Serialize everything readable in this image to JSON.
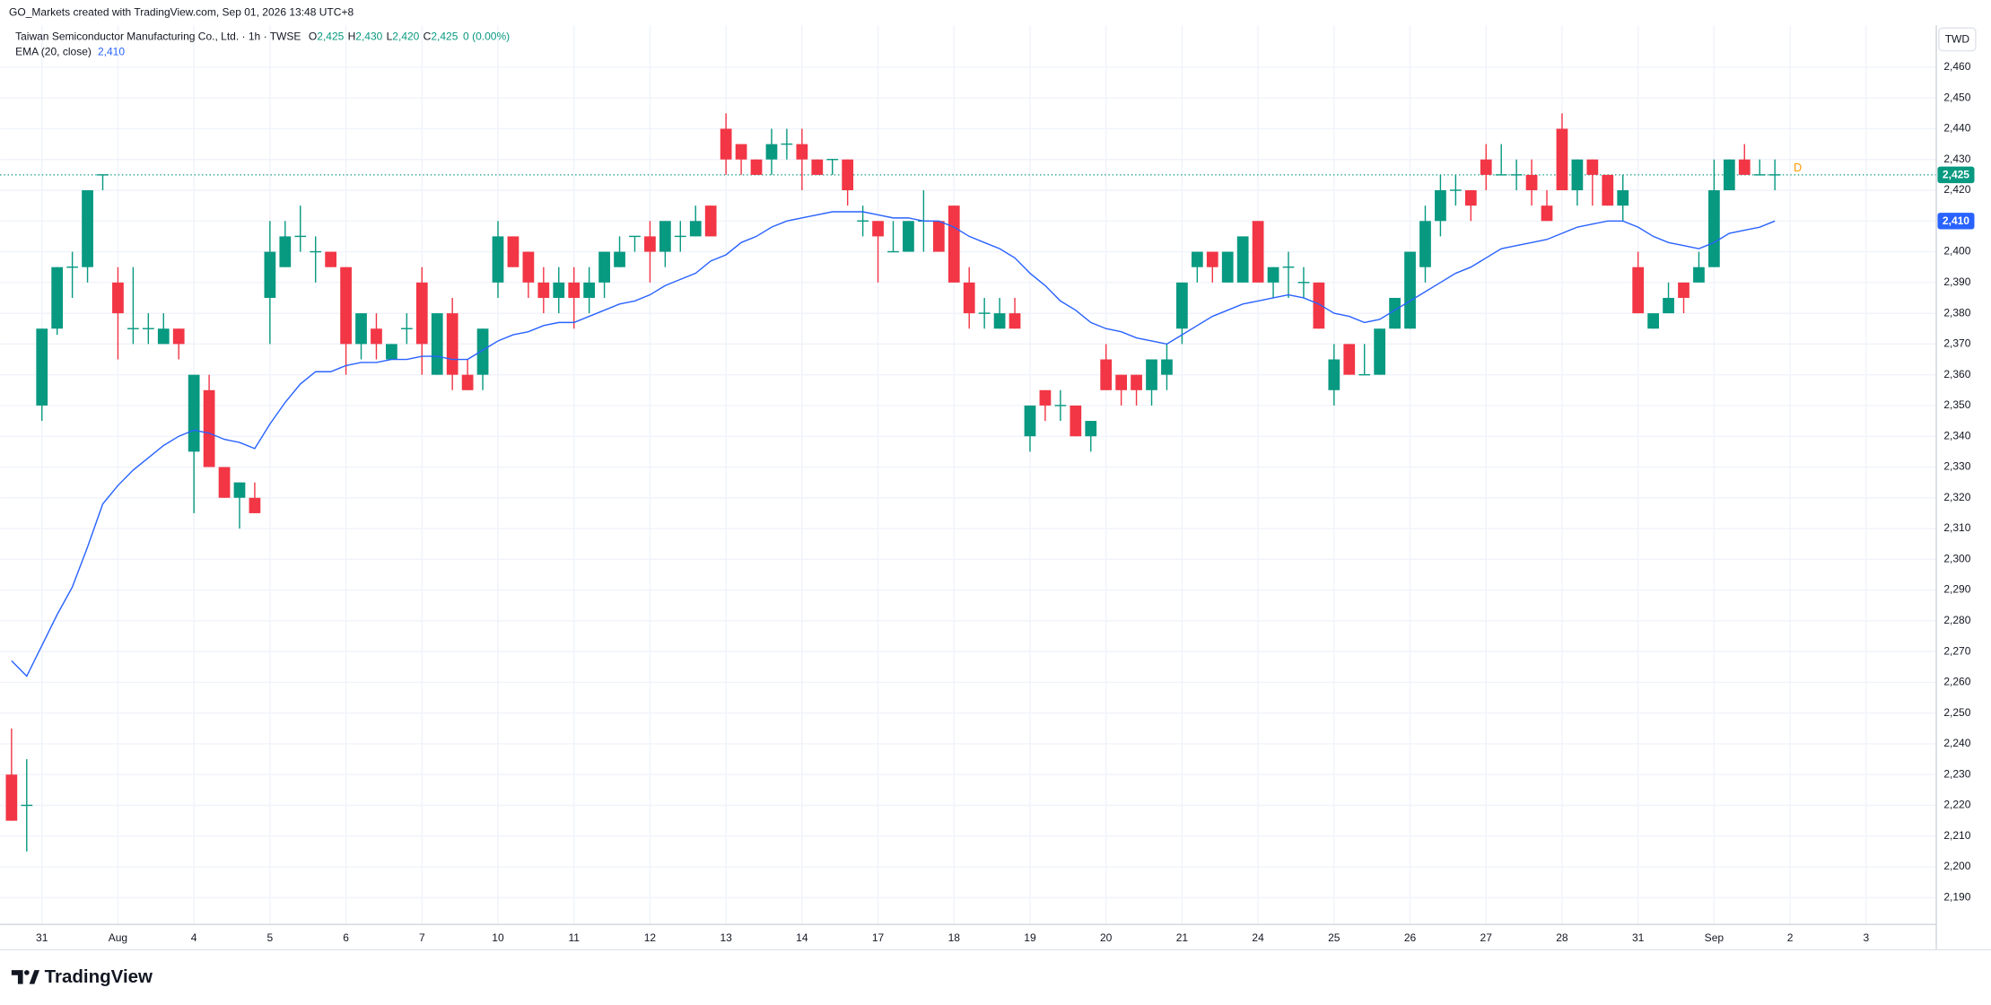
{
  "chart_data": {
    "type": "candlestick",
    "title": "GO_Markets created with TradingView.com, Sep 01, 2026 13:48 UTC+8",
    "symbol": "Taiwan Semiconductor Manufacturing Co., Ltd. · 1h · TWSE",
    "ohlc_legend": [
      {
        "key": "O",
        "value": "2,425"
      },
      {
        "key": "H",
        "value": "2,430"
      },
      {
        "key": "L",
        "value": "2,420"
      },
      {
        "key": "C",
        "value": "2,425"
      }
    ],
    "change": "0 (0.00%)",
    "currency": "TWD",
    "marker": "D",
    "brand": "TradingView",
    "up_color": "#089981",
    "down_color": "#f23645",
    "grid": true,
    "categories": [
      null,
      null,
      "31",
      null,
      null,
      null,
      null,
      "Aug",
      null,
      null,
      null,
      null,
      "4",
      null,
      null,
      null,
      null,
      "5",
      null,
      null,
      null,
      null,
      "6",
      null,
      null,
      null,
      null,
      "7",
      null,
      null,
      null,
      null,
      "10",
      null,
      null,
      null,
      null,
      "11",
      null,
      null,
      null,
      null,
      "12",
      null,
      null,
      null,
      null,
      "13",
      null,
      null,
      null,
      null,
      "14",
      null,
      null,
      null,
      null,
      "17",
      null,
      null,
      null,
      null,
      "18",
      null,
      null,
      null,
      null,
      "19",
      null,
      null,
      null,
      null,
      "20",
      null,
      null,
      null,
      null,
      "21",
      null,
      null,
      null,
      null,
      "24",
      null,
      null,
      null,
      null,
      "25",
      null,
      null,
      null,
      null,
      "26",
      null,
      null,
      null,
      null,
      "27",
      null,
      null,
      null,
      null,
      "28",
      null,
      null,
      null,
      null,
      "31",
      null,
      null,
      null,
      null,
      "Sep",
      null,
      null,
      null,
      null,
      "2",
      null,
      null,
      null,
      null,
      "3",
      null,
      null,
      null,
      null
    ],
    "open": [
      2230,
      2220,
      2350,
      2375,
      2395,
      2395,
      2425,
      2390,
      2375,
      2375,
      2370,
      2375,
      2335,
      2355,
      2330,
      2320,
      2320,
      2385,
      2395,
      2405,
      2400,
      2400,
      2395,
      2370,
      2375,
      2365,
      2375,
      2390,
      2360,
      2380,
      2360,
      2360,
      2390,
      2405,
      2400,
      2390,
      2385,
      2390,
      2385,
      2390,
      2395,
      2405,
      2405,
      2400,
      2405,
      2405,
      2415,
      2440,
      2435,
      2430,
      2430,
      2435,
      2435,
      2430,
      2430,
      2430,
      2410,
      2410,
      2400,
      2400,
      2410,
      2410,
      2415,
      2390,
      2380,
      2375,
      2380,
      2340,
      2355,
      2350,
      2350,
      2340,
      2365,
      2360,
      2360,
      2355,
      2360,
      2375,
      2395,
      2400,
      2390,
      2390,
      2410,
      2390,
      2395,
      2390,
      2390,
      2355,
      2370,
      2360,
      2360,
      2375,
      2375,
      2395,
      2410,
      2420,
      2420,
      2430,
      2425,
      2425,
      2425,
      2415,
      2440,
      2420,
      2430,
      2425,
      2415,
      2395,
      2375,
      2380,
      2390,
      2390,
      2395,
      2420,
      2430,
      2425,
      2425,
      null,
      null,
      null,
      null,
      null,
      null,
      null,
      null,
      null,
      null
    ],
    "high": [
      2245,
      2235,
      2375,
      2395,
      2400,
      2420,
      2425,
      2395,
      2395,
      2380,
      2380,
      2375,
      2360,
      2360,
      2330,
      2325,
      2325,
      2410,
      2410,
      2415,
      2405,
      2400,
      2395,
      2380,
      2380,
      2370,
      2380,
      2395,
      2380,
      2385,
      2365,
      2375,
      2410,
      2405,
      2400,
      2395,
      2395,
      2395,
      2395,
      2400,
      2405,
      2405,
      2410,
      2410,
      2410,
      2415,
      2415,
      2445,
      2435,
      2430,
      2440,
      2440,
      2440,
      2430,
      2430,
      2430,
      2415,
      2410,
      2410,
      2410,
      2420,
      2410,
      2415,
      2395,
      2385,
      2385,
      2385,
      2350,
      2355,
      2355,
      2350,
      2345,
      2370,
      2360,
      2360,
      2365,
      2370,
      2390,
      2400,
      2400,
      2400,
      2405,
      2410,
      2395,
      2400,
      2395,
      2390,
      2370,
      2370,
      2370,
      2375,
      2385,
      2400,
      2415,
      2425,
      2425,
      2420,
      2435,
      2435,
      2430,
      2430,
      2420,
      2445,
      2430,
      2430,
      2425,
      2425,
      2400,
      2380,
      2390,
      2390,
      2400,
      2430,
      2430,
      2435,
      2430,
      2430,
      null,
      null,
      null,
      null,
      null,
      null,
      null,
      null,
      null,
      null
    ],
    "low": [
      2215,
      2205,
      2345,
      2373,
      2385,
      2390,
      2420,
      2365,
      2370,
      2370,
      2370,
      2365,
      2315,
      2330,
      2320,
      2310,
      2315,
      2370,
      2395,
      2400,
      2390,
      2395,
      2360,
      2365,
      2365,
      2365,
      2370,
      2360,
      2360,
      2355,
      2355,
      2355,
      2385,
      2395,
      2385,
      2380,
      2380,
      2375,
      2380,
      2385,
      2395,
      2400,
      2390,
      2395,
      2400,
      2405,
      2405,
      2425,
      2425,
      2425,
      2425,
      2430,
      2420,
      2425,
      2425,
      2415,
      2405,
      2390,
      2400,
      2400,
      2400,
      2400,
      2390,
      2375,
      2375,
      2375,
      2375,
      2335,
      2345,
      2345,
      2340,
      2335,
      2355,
      2350,
      2350,
      2350,
      2355,
      2370,
      2390,
      2390,
      2390,
      2390,
      2390,
      2385,
      2385,
      2385,
      2375,
      2350,
      2360,
      2360,
      2360,
      2375,
      2375,
      2390,
      2405,
      2415,
      2410,
      2420,
      2425,
      2420,
      2415,
      2410,
      2420,
      2415,
      2415,
      2415,
      2410,
      2380,
      2375,
      2380,
      2380,
      2390,
      2395,
      2420,
      2425,
      2425,
      2420,
      null,
      null,
      null,
      null,
      null,
      null,
      null,
      null,
      null,
      null
    ],
    "close": [
      2215,
      2220,
      2375,
      2395,
      2395,
      2420,
      2425,
      2380,
      2375,
      2375,
      2375,
      2370,
      2360,
      2330,
      2320,
      2325,
      2315,
      2400,
      2405,
      2405,
      2400,
      2395,
      2370,
      2380,
      2370,
      2370,
      2375,
      2370,
      2380,
      2360,
      2355,
      2375,
      2405,
      2395,
      2390,
      2385,
      2390,
      2385,
      2390,
      2400,
      2400,
      2405,
      2400,
      2410,
      2405,
      2410,
      2405,
      2430,
      2430,
      2425,
      2435,
      2435,
      2430,
      2425,
      2430,
      2420,
      2410,
      2405,
      2400,
      2410,
      2410,
      2400,
      2390,
      2380,
      2380,
      2380,
      2375,
      2350,
      2350,
      2350,
      2340,
      2345,
      2355,
      2355,
      2355,
      2365,
      2365,
      2390,
      2400,
      2395,
      2400,
      2405,
      2390,
      2395,
      2395,
      2390,
      2375,
      2365,
      2360,
      2360,
      2375,
      2385,
      2400,
      2410,
      2420,
      2420,
      2415,
      2425,
      2425,
      2425,
      2420,
      2410,
      2420,
      2430,
      2425,
      2415,
      2420,
      2380,
      2380,
      2385,
      2385,
      2395,
      2420,
      2430,
      2425,
      2425,
      2425,
      null,
      null,
      null,
      null,
      null,
      null,
      null,
      null,
      null,
      null
    ],
    "ema": {
      "name": "EMA (20, close)",
      "last": "2,410",
      "color": "#2962ff",
      "values": [
        2267,
        2262,
        2272,
        2282,
        2291,
        2304,
        2318,
        2324,
        2329,
        2333,
        2337,
        2340,
        2342,
        2341,
        2339,
        2338,
        2336,
        2344,
        2351,
        2357,
        2361,
        2361,
        2363,
        2364,
        2364,
        2365,
        2365,
        2366,
        2366,
        2365,
        2365,
        2368,
        2371,
        2373,
        2374,
        2376,
        2377,
        2377,
        2379,
        2381,
        2383,
        2384,
        2386,
        2389,
        2391,
        2393,
        2397,
        2399,
        2403,
        2405,
        2408,
        2410,
        2411,
        2412,
        2413,
        2413,
        2413,
        2412,
        2411,
        2411,
        2410,
        2410,
        2408,
        2405,
        2403,
        2401,
        2398,
        2393,
        2389,
        2384,
        2381,
        2377,
        2375,
        2374,
        2372,
        2371,
        2370,
        2373,
        2376,
        2379,
        2381,
        2383,
        2384,
        2385,
        2386,
        2385,
        2383,
        2380,
        2379,
        2377,
        2378,
        2381,
        2384,
        2387,
        2390,
        2393,
        2395,
        2398,
        2401,
        2402,
        2403,
        2404,
        2406,
        2408,
        2409,
        2410,
        2410,
        2408,
        2405,
        2403,
        2402,
        2401,
        2403,
        2406,
        2407,
        2408,
        2410,
        null,
        null,
        null,
        null,
        null,
        null,
        null,
        null,
        null,
        null
      ]
    },
    "price_tags": [
      {
        "value": 2425,
        "label": "2,425",
        "color": "#089981"
      },
      {
        "value": 2410,
        "label": "2,410",
        "color": "#2962ff"
      }
    ],
    "ylim": [
      2181.3,
      2473.6
    ],
    "yticks": [
      {
        "value": 2190,
        "label": "2,190"
      },
      {
        "value": 2200,
        "label": "2,200"
      },
      {
        "value": 2210,
        "label": "2,210"
      },
      {
        "value": 2220,
        "label": "2,220"
      },
      {
        "value": 2230,
        "label": "2,230"
      },
      {
        "value": 2240,
        "label": "2,240"
      },
      {
        "value": 2250,
        "label": "2,250"
      },
      {
        "value": 2260,
        "label": "2,260"
      },
      {
        "value": 2270,
        "label": "2,270"
      },
      {
        "value": 2280,
        "label": "2,280"
      },
      {
        "value": 2290,
        "label": "2,290"
      },
      {
        "value": 2300,
        "label": "2,300"
      },
      {
        "value": 2310,
        "label": "2,310"
      },
      {
        "value": 2320,
        "label": "2,320"
      },
      {
        "value": 2330,
        "label": "2,330"
      },
      {
        "value": 2340,
        "label": "2,340"
      },
      {
        "value": 2350,
        "label": "2,350"
      },
      {
        "value": 2360,
        "label": "2,360"
      },
      {
        "value": 2370,
        "label": "2,370"
      },
      {
        "value": 2380,
        "label": "2,380"
      },
      {
        "value": 2390,
        "label": "2,390"
      },
      {
        "value": 2400,
        "label": "2,400"
      },
      {
        "value": 2410,
        "label": "2,410"
      },
      {
        "value": 2420,
        "label": "2,420"
      },
      {
        "value": 2430,
        "label": "2,430"
      },
      {
        "value": 2440,
        "label": "2,440"
      },
      {
        "value": 2450,
        "label": "2,450"
      },
      {
        "value": 2460,
        "label": "2,460"
      }
    ]
  }
}
